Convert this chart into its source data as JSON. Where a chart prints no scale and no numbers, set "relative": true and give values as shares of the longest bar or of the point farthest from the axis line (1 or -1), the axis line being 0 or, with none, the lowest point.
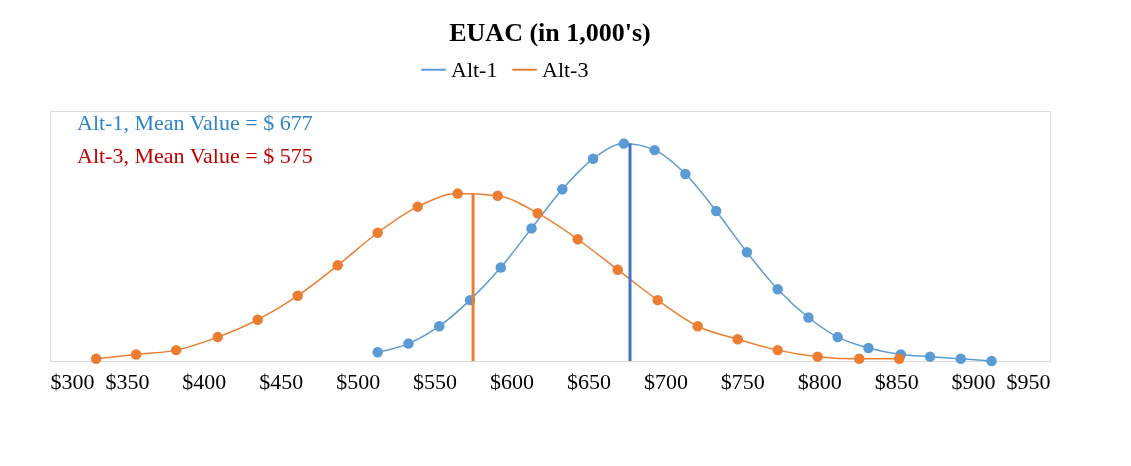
{
  "chart_data": {
    "type": "line",
    "title": "EUAC (in 1,000's)",
    "relative": true,
    "legend": "top",
    "marker": "circle",
    "line_style": "solid",
    "grid": false,
    "xlim": [
      300,
      950
    ],
    "xticks": [
      {
        "value": 300,
        "label": "$300"
      },
      {
        "value": 350,
        "label": "$350"
      },
      {
        "value": 400,
        "label": "$400"
      },
      {
        "value": 450,
        "label": "$450"
      },
      {
        "value": 500,
        "label": "$500"
      },
      {
        "value": 550,
        "label": "$550"
      },
      {
        "value": 600,
        "label": "$600"
      },
      {
        "value": 650,
        "label": "$650"
      },
      {
        "value": 700,
        "label": "$700"
      },
      {
        "value": 750,
        "label": "$750"
      },
      {
        "value": 800,
        "label": "$800"
      },
      {
        "value": 850,
        "label": "$850"
      },
      {
        "value": 900,
        "label": "$900"
      },
      {
        "value": 950,
        "label": "$950"
      }
    ],
    "series": [
      {
        "name": "Alt-1",
        "color": "#5b9bd5",
        "x": [
          513,
          533,
          553,
          573,
          593,
          613,
          633,
          653,
          673,
          693,
          713,
          733,
          753,
          773,
          793,
          812,
          832,
          853,
          872,
          892,
          912
        ],
        "values": [
          0.04,
          0.08,
          0.16,
          0.28,
          0.43,
          0.61,
          0.79,
          0.93,
          1.0,
          0.97,
          0.86,
          0.69,
          0.5,
          0.33,
          0.2,
          0.11,
          0.06,
          0.03,
          0.02,
          0.01,
          0.0
        ]
      },
      {
        "name": "Alt-3",
        "color": "#ed7d31",
        "x": [
          330,
          356,
          382,
          409,
          435,
          461,
          487,
          513,
          539,
          565,
          591,
          617,
          643,
          669,
          695,
          721,
          747,
          773,
          799,
          826,
          852
        ],
        "values": [
          0.01,
          0.03,
          0.05,
          0.11,
          0.19,
          0.3,
          0.44,
          0.59,
          0.71,
          0.77,
          0.76,
          0.68,
          0.56,
          0.42,
          0.28,
          0.16,
          0.1,
          0.05,
          0.02,
          0.01,
          0.01
        ]
      }
    ],
    "ref_lines": [
      {
        "axis": "x",
        "value": 677,
        "color": "#4472c4"
      },
      {
        "axis": "x",
        "value": 575,
        "color": "#ed7d31"
      }
    ],
    "annotations": [
      "Alt-1, Mean Value = $ 677",
      "Alt-3, Mean Value = $ 575"
    ]
  }
}
